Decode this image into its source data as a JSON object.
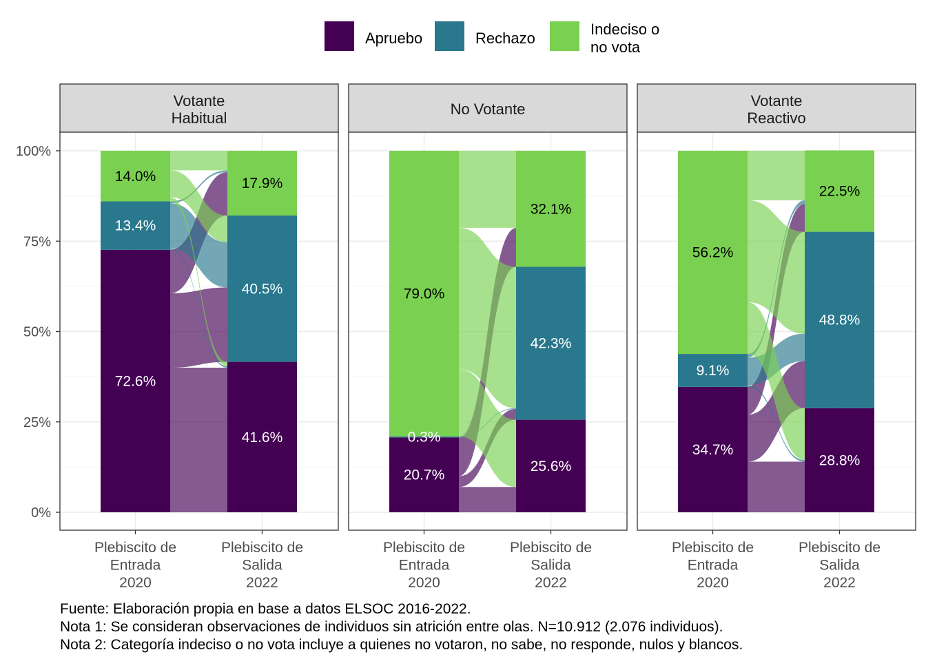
{
  "legend": [
    {
      "label_lines": [
        "Apruebo"
      ],
      "color": "#440154"
    },
    {
      "label_lines": [
        "Rechazo"
      ],
      "color": "#2a788e"
    },
    {
      "label_lines": [
        "Indeciso o",
        "no vota"
      ],
      "color": "#7ad151"
    }
  ],
  "caption": {
    "line1": "Fuente: Elaboración propia en base a datos ELSOC 2016-2022.",
    "line2": "Nota 1: Se consideran observaciones de individuos sin atrición entre olas. N=10.912 (2.076 individuos).",
    "line3": "Nota 2: Categoría indeciso o no vota incluye a quienes no votaron, no sabe, no responde, nulos y blancos."
  },
  "chart_data": {
    "type": "alluvial",
    "ylim": [
      0,
      100
    ],
    "y_ticks": [
      "0%",
      "25%",
      "50%",
      "75%",
      "100%"
    ],
    "x_categories": [
      [
        "Plebiscito de",
        "Entrada",
        "2020"
      ],
      [
        "Plebiscito de",
        "Salida",
        "2022"
      ]
    ],
    "category_order": [
      "Apruebo",
      "Rechazo",
      "Indeciso o no vota"
    ],
    "colors": {
      "Apruebo": "#440154",
      "Rechazo": "#2a788e",
      "Indeciso o no vota": "#7ad151"
    },
    "panels": [
      {
        "title_lines": [
          "Votante",
          "Habitual"
        ],
        "entrada": {
          "Apruebo": 72.6,
          "Rechazo": 13.4,
          "Indeciso o no vota": 14.0
        },
        "salida": {
          "Apruebo": 41.6,
          "Rechazo": 40.5,
          "Indeciso o no vota": 17.9
        },
        "entrada_labels": [
          "72.6%",
          "13.4%",
          "14.0%"
        ],
        "salida_labels": [
          "41.6%",
          "40.5%",
          "17.9%"
        ],
        "flows": [
          {
            "from": "Apruebo",
            "to": "Apruebo",
            "value": 40.0
          },
          {
            "from": "Apruebo",
            "to": "Rechazo",
            "value": 20.6
          },
          {
            "from": "Apruebo",
            "to": "Indeciso o no vota",
            "value": 12.0
          },
          {
            "from": "Rechazo",
            "to": "Apruebo",
            "value": 0.4
          },
          {
            "from": "Rechazo",
            "to": "Rechazo",
            "value": 12.5
          },
          {
            "from": "Rechazo",
            "to": "Indeciso o no vota",
            "value": 0.5
          },
          {
            "from": "Indeciso o no vota",
            "to": "Apruebo",
            "value": 1.2
          },
          {
            "from": "Indeciso o no vota",
            "to": "Rechazo",
            "value": 7.4
          },
          {
            "from": "Indeciso o no vota",
            "to": "Indeciso o no vota",
            "value": 5.4
          }
        ]
      },
      {
        "title_lines": [
          "No Votante"
        ],
        "entrada": {
          "Apruebo": 20.7,
          "Rechazo": 0.3,
          "Indeciso o no vota": 79.0
        },
        "salida": {
          "Apruebo": 25.6,
          "Rechazo": 42.3,
          "Indeciso o no vota": 32.1
        },
        "entrada_labels": [
          "20.7%",
          "0.3%",
          "79.0%"
        ],
        "salida_labels": [
          "25.6%",
          "42.3%",
          "32.1%"
        ],
        "flows": [
          {
            "from": "Apruebo",
            "to": "Apruebo",
            "value": 7.0
          },
          {
            "from": "Apruebo",
            "to": "Rechazo",
            "value": 3.0
          },
          {
            "from": "Apruebo",
            "to": "Indeciso o no vota",
            "value": 10.7
          },
          {
            "from": "Rechazo",
            "to": "Apruebo",
            "value": 0.0
          },
          {
            "from": "Rechazo",
            "to": "Rechazo",
            "value": 0.2
          },
          {
            "from": "Rechazo",
            "to": "Indeciso o no vota",
            "value": 0.1
          },
          {
            "from": "Indeciso o no vota",
            "to": "Apruebo",
            "value": 18.6
          },
          {
            "from": "Indeciso o no vota",
            "to": "Rechazo",
            "value": 39.1
          },
          {
            "from": "Indeciso o no vota",
            "to": "Indeciso o no vota",
            "value": 21.3
          }
        ]
      },
      {
        "title_lines": [
          "Votante",
          "Reactivo"
        ],
        "entrada": {
          "Apruebo": 34.7,
          "Rechazo": 9.1,
          "Indeciso o no vota": 56.2
        },
        "salida": {
          "Apruebo": 28.8,
          "Rechazo": 48.8,
          "Indeciso o no vota": 22.5
        },
        "entrada_labels": [
          "34.7%",
          "9.1%",
          "56.2%"
        ],
        "salida_labels": [
          "28.8%",
          "48.8%",
          "22.5%"
        ],
        "flows": [
          {
            "from": "Apruebo",
            "to": "Apruebo",
            "value": 14.0
          },
          {
            "from": "Apruebo",
            "to": "Rechazo",
            "value": 13.0
          },
          {
            "from": "Apruebo",
            "to": "Indeciso o no vota",
            "value": 7.7
          },
          {
            "from": "Rechazo",
            "to": "Apruebo",
            "value": 0.5
          },
          {
            "from": "Rechazo",
            "to": "Rechazo",
            "value": 7.6
          },
          {
            "from": "Rechazo",
            "to": "Indeciso o no vota",
            "value": 1.0
          },
          {
            "from": "Indeciso o no vota",
            "to": "Apruebo",
            "value": 14.3
          },
          {
            "from": "Indeciso o no vota",
            "to": "Rechazo",
            "value": 28.2
          },
          {
            "from": "Indeciso o no vota",
            "to": "Indeciso o no vota",
            "value": 13.7
          }
        ]
      }
    ]
  }
}
